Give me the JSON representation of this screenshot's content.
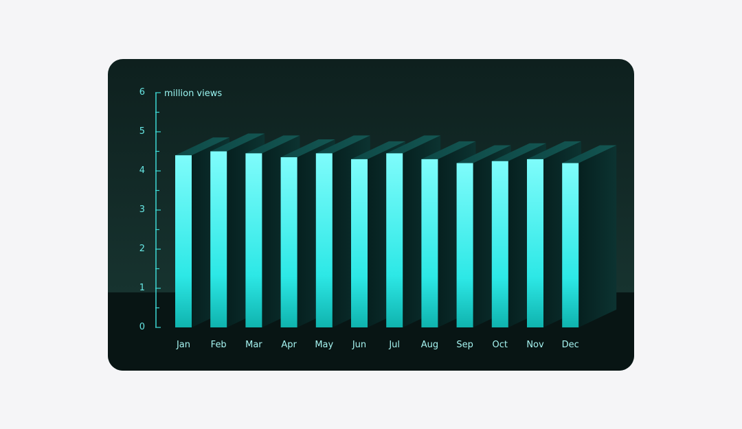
{
  "chart_data": {
    "type": "bar",
    "unit_label": "million views",
    "categories": [
      "Jan",
      "Feb",
      "Mar",
      "Apr",
      "May",
      "Jun",
      "Jul",
      "Aug",
      "Sep",
      "Oct",
      "Nov",
      "Dec"
    ],
    "values": [
      4.4,
      4.5,
      4.45,
      4.35,
      4.45,
      4.3,
      4.45,
      4.3,
      4.2,
      4.25,
      4.3,
      4.2
    ],
    "ylim": [
      0,
      6
    ],
    "yticks": [
      "0",
      "1",
      "2",
      "3",
      "4",
      "5",
      "6"
    ],
    "grid": false,
    "colors": {
      "bar_top": "#7ffcfb",
      "bar_mid": "#2de8e6",
      "bar_bottom": "#0fb3ae",
      "axis": "#3ed9d5"
    }
  }
}
